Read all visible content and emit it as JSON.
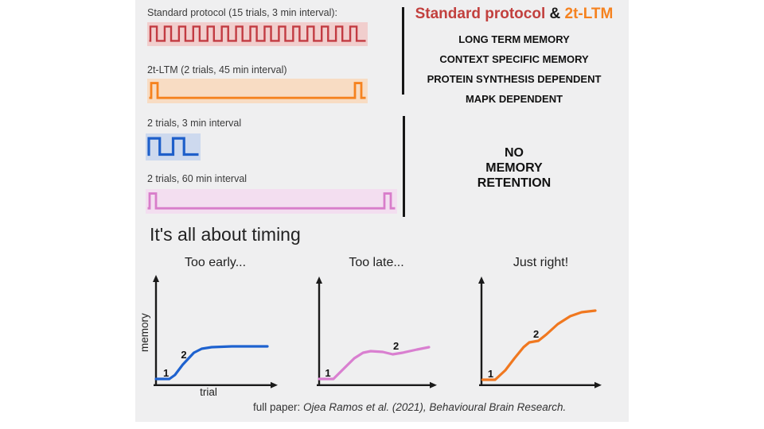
{
  "panel": {
    "bg": "#efeff0"
  },
  "protocols": {
    "rows": [
      {
        "label": "Standard protocol (15 trials, 3 min interval):",
        "trials": 15,
        "kind": "train",
        "color": "#c23b42",
        "bg": "#f1cecd",
        "stroke_width": 2.4
      },
      {
        "label": "2t-LTM (2 trials, 45 min interval)",
        "trials": 2,
        "kind": "edges",
        "color": "#f5821f",
        "bg": "#f8dcc3",
        "stroke_width": 2.8
      },
      {
        "label": "2 trials, 3 min interval",
        "trials": 2,
        "kind": "train",
        "color": "#1e5fca",
        "bg": "#cdd9ee",
        "stroke_width": 3.2
      },
      {
        "label": "2 trials, 60 min interval",
        "trials": 2,
        "kind": "edges",
        "color": "#d87dca",
        "bg": "#f3def0",
        "stroke_width": 2.8
      }
    ]
  },
  "right_top": {
    "title_part1": "Standard protocol",
    "title_amp": " & ",
    "title_part2": "2t-LTM",
    "title_color1": "#c2403e",
    "title_color2": "#f5821f",
    "properties": [
      "LONG TERM MEMORY",
      "CONTEXT SPECIFIC MEMORY",
      "PROTEIN SYNTHESIS DEPENDENT",
      "MAPK DEPENDENT"
    ]
  },
  "right_bottom": {
    "no_retention": "NO\nMEMORY\nRETENTION"
  },
  "timing": {
    "heading": "It's all about timing"
  },
  "chart_data": [
    {
      "type": "line",
      "title": "Too early...",
      "xlabel": "trial",
      "ylabel": "memory",
      "color": "#1e62cf",
      "points": [
        [
          0,
          7
        ],
        [
          12,
          7
        ],
        [
          17,
          12
        ],
        [
          24,
          25
        ],
        [
          28,
          31
        ],
        [
          34,
          40
        ],
        [
          41,
          45
        ],
        [
          50,
          47
        ],
        [
          68,
          48
        ],
        [
          100,
          48
        ]
      ],
      "markers": [
        {
          "label": "1",
          "x": 9,
          "y": 10
        },
        {
          "label": "2",
          "x": 25,
          "y": 33
        }
      ]
    },
    {
      "type": "line",
      "title": "Too late...",
      "xlabel": "",
      "ylabel": "",
      "color": "#d97fd0",
      "points": [
        [
          0,
          7
        ],
        [
          13,
          7
        ],
        [
          21,
          18
        ],
        [
          32,
          33
        ],
        [
          40,
          40
        ],
        [
          47,
          42
        ],
        [
          58,
          41
        ],
        [
          67,
          38
        ],
        [
          76,
          40
        ],
        [
          89,
          44
        ],
        [
          100,
          47
        ]
      ],
      "markers": [
        {
          "label": "1",
          "x": 8,
          "y": 10
        },
        {
          "label": "2",
          "x": 70,
          "y": 44
        }
      ]
    },
    {
      "type": "line",
      "title": "Just right!",
      "xlabel": "",
      "ylabel": "",
      "color": "#f07820",
      "points": [
        [
          1,
          6
        ],
        [
          12,
          6
        ],
        [
          21,
          18
        ],
        [
          29,
          33
        ],
        [
          37,
          47
        ],
        [
          42,
          53
        ],
        [
          50,
          55
        ],
        [
          57,
          63
        ],
        [
          67,
          76
        ],
        [
          78,
          86
        ],
        [
          88,
          91
        ],
        [
          100,
          93
        ]
      ],
      "markers": [
        {
          "label": "1",
          "x": 8,
          "y": 9
        },
        {
          "label": "2",
          "x": 48,
          "y": 59
        }
      ]
    }
  ],
  "footer": {
    "prefix": "full paper: ",
    "citation": "Ojea Ramos et al. (2021), Behavioural Brain Research."
  }
}
